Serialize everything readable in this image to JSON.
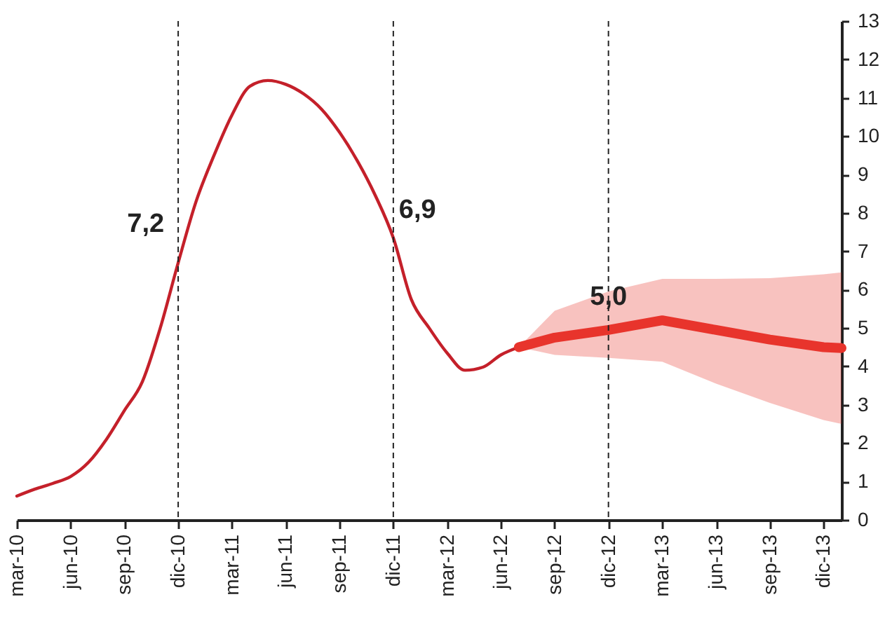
{
  "chart_data": {
    "type": "line",
    "series": [
      {
        "color": "#c4202a",
        "x": [
          "2010-03",
          "2010-04",
          "2010-05",
          "2010-06",
          "2010-07",
          "2010-08",
          "2010-09",
          "2010-10",
          "2010-11",
          "2010-12",
          "2011-01",
          "2011-02",
          "2011-03",
          "2011-04",
          "2011-05",
          "2011-06",
          "2011-07",
          "2011-08",
          "2011-09",
          "2011-10",
          "2011-11",
          "2011-12",
          "2012-01",
          "2012-02",
          "2012-03",
          "2012-04",
          "2012-05",
          "2012-06",
          "2012-07"
        ],
        "values": [
          0.62,
          0.8,
          0.95,
          1.13,
          1.5,
          2.1,
          2.85,
          3.6,
          5.0,
          6.7,
          8.3,
          9.5,
          10.55,
          11.3,
          11.45,
          11.35,
          11.1,
          10.7,
          10.1,
          9.35,
          8.45,
          7.35,
          5.75,
          5.0,
          4.35,
          3.9,
          3.98,
          4.3,
          4.5
        ]
      },
      {
        "color": "#e8342c",
        "x": [
          "2012-07",
          "2012-09",
          "2012-12",
          "2013-03",
          "2013-06",
          "2013-09",
          "2013-12",
          "2014-01"
        ],
        "values": [
          4.5,
          4.75,
          4.95,
          5.2,
          4.95,
          4.7,
          4.5,
          4.48
        ],
        "lower": [
          4.5,
          4.3,
          4.22,
          4.12,
          3.55,
          3.05,
          2.6,
          2.5
        ],
        "upper": [
          4.5,
          5.45,
          5.95,
          6.28,
          6.28,
          6.3,
          6.4,
          6.45
        ]
      }
    ],
    "xlim": [
      "2010-03",
      "2014-01"
    ],
    "xticks": [
      {
        "value": "2010-03",
        "label": "mar-10"
      },
      {
        "value": "2010-06",
        "label": "jun-10"
      },
      {
        "value": "2010-09",
        "label": "sep-10"
      },
      {
        "value": "2010-12",
        "label": "dic-10"
      },
      {
        "value": "2011-03",
        "label": "mar-11"
      },
      {
        "value": "2011-06",
        "label": "jun-11"
      },
      {
        "value": "2011-09",
        "label": "sep-11"
      },
      {
        "value": "2011-12",
        "label": "dic-11"
      },
      {
        "value": "2012-03",
        "label": "mar-12"
      },
      {
        "value": "2012-06",
        "label": "jun-12"
      },
      {
        "value": "2012-09",
        "label": "sep-12"
      },
      {
        "value": "2012-12",
        "label": "dic-12"
      },
      {
        "value": "2013-03",
        "label": "mar-13"
      },
      {
        "value": "2013-06",
        "label": "jun-13"
      },
      {
        "value": "2013-09",
        "label": "sep-13"
      },
      {
        "value": "2013-12",
        "label": "dic-13"
      }
    ],
    "ylim": [
      0,
      13
    ],
    "yticks": [
      0,
      1,
      2,
      3,
      4,
      5,
      6,
      7,
      8,
      9,
      10,
      11,
      12,
      13
    ],
    "grid": false,
    "marker": "none",
    "ref_lines": [
      {
        "axis": "x",
        "value": "2010-12",
        "line_style": "dashed",
        "label": "7,2"
      },
      {
        "axis": "x",
        "value": "2011-12",
        "line_style": "dashed",
        "label": "6,9"
      },
      {
        "axis": "x",
        "value": "2012-12",
        "line_style": "dashed",
        "label": "5,0"
      }
    ]
  }
}
